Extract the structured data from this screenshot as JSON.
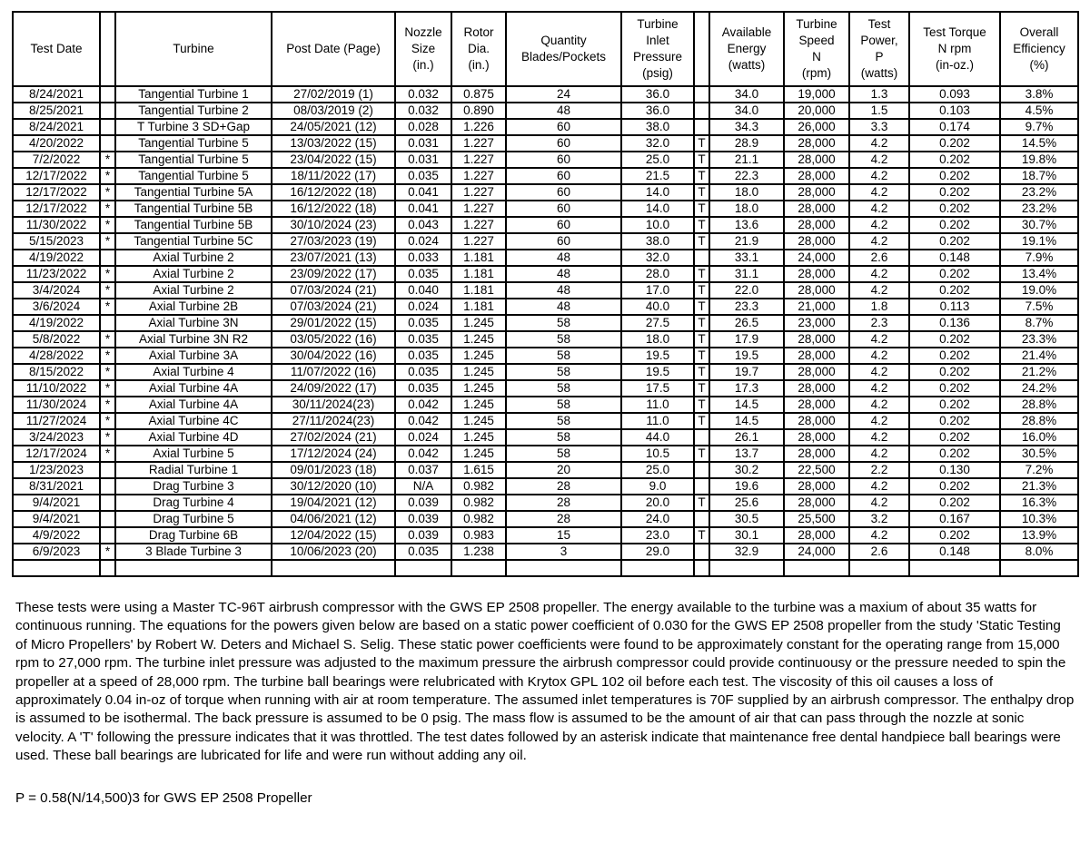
{
  "table": {
    "headers": [
      "Test Date",
      "",
      "Turbine",
      "Post Date (Page)",
      "Nozzle\nSize\n(in.)",
      "Rotor\nDia.\n(in.)",
      "Quantity\nBlades/Pockets",
      "Turbine\nInlet\nPressure\n(psig)",
      "",
      "Available\nEnergy\n(watts)",
      "Turbine\nSpeed\nN\n(rpm)",
      "Test\nPower,\nP\n(watts)",
      "Test Torque\nN rpm\n(in-oz.)",
      "Overall\nEfficiency\n(%)"
    ],
    "rows": [
      [
        "8/24/2021",
        "",
        "Tangential Turbine 1",
        "27/02/2019 (1)",
        "0.032",
        "0.875",
        "24",
        "36.0",
        "",
        "34.0",
        "19,000",
        "1.3",
        "0.093",
        "3.8%"
      ],
      [
        "8/25/2021",
        "",
        "Tangential Turbine 2",
        "08/03/2019 (2)",
        "0.032",
        "0.890",
        "48",
        "36.0",
        "",
        "34.0",
        "20,000",
        "1.5",
        "0.103",
        "4.5%"
      ],
      [
        "8/24/2021",
        "",
        "T Turbine 3 SD+Gap",
        "24/05/2021 (12)",
        "0.028",
        "1.226",
        "60",
        "38.0",
        "",
        "34.3",
        "26,000",
        "3.3",
        "0.174",
        "9.7%"
      ],
      [
        "4/20/2022",
        "",
        "Tangential Turbine 5",
        "13/03/2022 (15)",
        "0.031",
        "1.227",
        "60",
        "32.0",
        "T",
        "28.9",
        "28,000",
        "4.2",
        "0.202",
        "14.5%"
      ],
      [
        "7/2/2022",
        "*",
        "Tangential Turbine 5",
        "23/04/2022 (15)",
        "0.031",
        "1.227",
        "60",
        "25.0",
        "T",
        "21.1",
        "28,000",
        "4.2",
        "0.202",
        "19.8%"
      ],
      [
        "12/17/2022",
        "*",
        "Tangential Turbine 5",
        "18/11/2022 (17)",
        "0.035",
        "1.227",
        "60",
        "21.5",
        "T",
        "22.3",
        "28,000",
        "4.2",
        "0.202",
        "18.7%"
      ],
      [
        "12/17/2022",
        "*",
        "Tangential Turbine 5A",
        "16/12/2022 (18)",
        "0.041",
        "1.227",
        "60",
        "14.0",
        "T",
        "18.0",
        "28,000",
        "4.2",
        "0.202",
        "23.2%"
      ],
      [
        "12/17/2022",
        "*",
        "Tangential Turbine 5B",
        "16/12/2022 (18)",
        "0.041",
        "1.227",
        "60",
        "14.0",
        "T",
        "18.0",
        "28,000",
        "4.2",
        "0.202",
        "23.2%"
      ],
      [
        "11/30/2022",
        "*",
        "Tangential Turbine 5B",
        "30/10/2024 (23)",
        "0.043",
        "1.227",
        "60",
        "10.0",
        "T",
        "13.6",
        "28,000",
        "4.2",
        "0.202",
        "30.7%"
      ],
      [
        "5/15/2023",
        "*",
        "Tangential Turbine 5C",
        "27/03/2023 (19)",
        "0.024",
        "1.227",
        "60",
        "38.0",
        "T",
        "21.9",
        "28,000",
        "4.2",
        "0.202",
        "19.1%"
      ],
      [
        "4/19/2022",
        "",
        "Axial Turbine 2",
        "23/07/2021 (13)",
        "0.033",
        "1.181",
        "48",
        "32.0",
        "",
        "33.1",
        "24,000",
        "2.6",
        "0.148",
        "7.9%"
      ],
      [
        "11/23/2022",
        "*",
        "Axial Turbine 2",
        "23/09/2022 (17)",
        "0.035",
        "1.181",
        "48",
        "28.0",
        "T",
        "31.1",
        "28,000",
        "4.2",
        "0.202",
        "13.4%"
      ],
      [
        "3/4/2024",
        "*",
        "Axial Turbine 2",
        "07/03/2024 (21)",
        "0.040",
        "1.181",
        "48",
        "17.0",
        "T",
        "22.0",
        "28,000",
        "4.2",
        "0.202",
        "19.0%"
      ],
      [
        "3/6/2024",
        "*",
        "Axial Turbine 2B",
        "07/03/2024 (21)",
        "0.024",
        "1.181",
        "48",
        "40.0",
        "T",
        "23.3",
        "21,000",
        "1.8",
        "0.113",
        "7.5%"
      ],
      [
        "4/19/2022",
        "",
        "Axial Turbine 3N",
        "29/01/2022 (15)",
        "0.035",
        "1.245",
        "58",
        "27.5",
        "T",
        "26.5",
        "23,000",
        "2.3",
        "0.136",
        "8.7%"
      ],
      [
        "5/8/2022",
        "*",
        "Axial Turbine 3N R2",
        "03/05/2022 (16)",
        "0.035",
        "1.245",
        "58",
        "18.0",
        "T",
        "17.9",
        "28,000",
        "4.2",
        "0.202",
        "23.3%"
      ],
      [
        "4/28/2022",
        "*",
        "Axial Turbine 3A",
        "30/04/2022 (16)",
        "0.035",
        "1.245",
        "58",
        "19.5",
        "T",
        "19.5",
        "28,000",
        "4.2",
        "0.202",
        "21.4%"
      ],
      [
        "8/15/2022",
        "*",
        "Axial Turbine 4",
        "11/07/2022 (16)",
        "0.035",
        "1.245",
        "58",
        "19.5",
        "T",
        "19.7",
        "28,000",
        "4.2",
        "0.202",
        "21.2%"
      ],
      [
        "11/10/2022",
        "*",
        "Axial Turbine 4A",
        "24/09/2022 (17)",
        "0.035",
        "1.245",
        "58",
        "17.5",
        "T",
        "17.3",
        "28,000",
        "4.2",
        "0.202",
        "24.2%"
      ],
      [
        "11/30/2024",
        "*",
        "Axial Turbine 4A",
        "30/11/2024(23)",
        "0.042",
        "1.245",
        "58",
        "11.0",
        "T",
        "14.5",
        "28,000",
        "4.2",
        "0.202",
        "28.8%"
      ],
      [
        "11/27/2024",
        "*",
        "Axial Turbine 4C",
        "27/11/2024(23)",
        "0.042",
        "1.245",
        "58",
        "11.0",
        "T",
        "14.5",
        "28,000",
        "4.2",
        "0.202",
        "28.8%"
      ],
      [
        "3/24/2023",
        "*",
        "Axial Turbine 4D",
        "27/02/2024 (21)",
        "0.024",
        "1.245",
        "58",
        "44.0",
        "",
        "26.1",
        "28,000",
        "4.2",
        "0.202",
        "16.0%"
      ],
      [
        "12/17/2024",
        "*",
        "Axial Turbine 5",
        "17/12/2024 (24)",
        "0.042",
        "1.245",
        "58",
        "10.5",
        "T",
        "13.7",
        "28,000",
        "4.2",
        "0.202",
        "30.5%"
      ],
      [
        "1/23/2023",
        "",
        "Radial Turbine 1",
        "09/01/2023 (18)",
        "0.037",
        "1.615",
        "20",
        "25.0",
        "",
        "30.2",
        "22,500",
        "2.2",
        "0.130",
        "7.2%"
      ],
      [
        "8/31/2021",
        "",
        "Drag Turbine 3",
        "30/12/2020 (10)",
        "N/A",
        "0.982",
        "28",
        "9.0",
        "",
        "19.6",
        "28,000",
        "4.2",
        "0.202",
        "21.3%"
      ],
      [
        "9/4/2021",
        "",
        "Drag Turbine 4",
        "19/04/2021 (12)",
        "0.039",
        "0.982",
        "28",
        "20.0",
        "T",
        "25.6",
        "28,000",
        "4.2",
        "0.202",
        "16.3%"
      ],
      [
        "9/4/2021",
        "",
        "Drag Turbine 5",
        "04/06/2021 (12)",
        "0.039",
        "0.982",
        "28",
        "24.0",
        "",
        "30.5",
        "25,500",
        "3.2",
        "0.167",
        "10.3%"
      ],
      [
        "4/9/2022",
        "",
        "Drag Turbine 6B",
        "12/04/2022 (15)",
        "0.039",
        "0.983",
        "15",
        "23.0",
        "T",
        "30.1",
        "28,000",
        "4.2",
        "0.202",
        "13.9%"
      ],
      [
        "6/9/2023",
        "*",
        "3 Blade Turbine 3",
        "10/06/2023 (20)",
        "0.035",
        "1.238",
        "3",
        "29.0",
        "",
        "32.9",
        "24,000",
        "2.6",
        "0.148",
        "8.0%"
      ],
      [
        "",
        "",
        "",
        "",
        "",
        "",
        "",
        "",
        "",
        "",
        "",
        "",
        "",
        ""
      ]
    ]
  },
  "notes": "These tests were using a Master TC-96T airbrush compressor with the GWS EP 2508  propeller.  The energy available to the turbine was a maxium of about 35 watts for continuous running.  The equations for the powers given below are based on a static power coefficient of 0.030 for the GWS EP 2508 propeller from the study 'Static Testing of Micro Propellers' by Robert W. Deters and Michael S. Selig.  These static power coefficients were found to be approximately constant for the operating range from 15,000 rpm to 27,000 rpm.  The turbine inlet pressure was adjusted to the maximum pressure the airbrush compressor could provide continuousy or the pressure needed to spin the propeller at a speed of 28,000 rpm. The turbine ball bearings were relubricated with Krytox GPL 102 oil before each test. The viscosity of this oil causes a loss of approximately 0.04 in-oz of torque when running with air at room temperature. The assumed inlet temperatures is 70F supplied by an airbrush compressor.  The enthalpy drop is assumed to be isothermal. The back pressure is assumed to be 0 psig.  The mass flow is assumed to be the amount of air  that can pass through  the nozzle at sonic velocity. A 'T' following the pressure indicates that it was throttled. The test dates followed by an asterisk indicate that maintenance free dental handpiece ball bearings were used. These ball bearings are lubricated for life and were run without adding any oil.",
  "formula": "P = 0.58(N/14,500)3 for GWS EP 2508 Propeller"
}
